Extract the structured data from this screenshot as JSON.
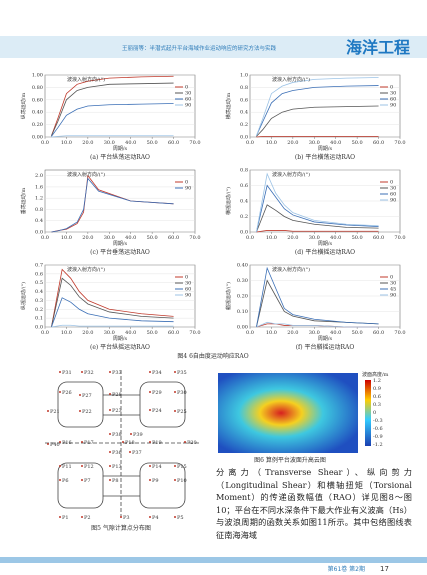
{
  "header": {
    "running_title": "王丽丽等：半潜式起升平台海域作业运动响应的研究方法与实践",
    "journal": "海洋工程"
  },
  "figure4": {
    "caption": "图4 6自由度运动响应RAO",
    "panels": [
      {
        "type": "line",
        "caption": "(a) 平台纵荡运动RAO",
        "xlabel": "周期/s",
        "ylabel": "纵荡运动/m",
        "legend_title": "波浪入射方向/(°)",
        "x": [
          3,
          6,
          10,
          15,
          20,
          30,
          45,
          60
        ],
        "xlim": [
          0,
          70
        ],
        "ylim": [
          0,
          1
        ],
        "xticks": [
          {
            "value": 0,
            "label": "0.0"
          },
          {
            "value": 10,
            "label": "10.0"
          },
          {
            "value": 20,
            "label": "20.0"
          },
          {
            "value": 30,
            "label": "30.0"
          },
          {
            "value": 40,
            "label": "40.0"
          },
          {
            "value": 50,
            "label": "50.0"
          },
          {
            "value": 60,
            "label": "60.0"
          },
          {
            "value": 70,
            "label": "70.0"
          }
        ],
        "yticks": [
          {
            "value": 0,
            "label": "0.00"
          },
          {
            "value": 0.2,
            "label": "0.20"
          },
          {
            "value": 0.4,
            "label": "0.40"
          },
          {
            "value": 0.6,
            "label": "0.60"
          },
          {
            "value": 0.8,
            "label": "0.80"
          },
          {
            "value": 1,
            "label": "1.00"
          }
        ],
        "series": [
          {
            "name": "0",
            "color": "#c0392b",
            "values": [
              0.02,
              0.3,
              0.7,
              0.85,
              0.9,
              0.95,
              0.97,
              0.98
            ]
          },
          {
            "name": "30",
            "color": "#555",
            "values": [
              0.02,
              0.25,
              0.6,
              0.75,
              0.8,
              0.85,
              0.86,
              0.87
            ]
          },
          {
            "name": "60",
            "color": "#3b6fb6",
            "values": [
              0.01,
              0.15,
              0.35,
              0.45,
              0.5,
              0.52,
              0.53,
              0.54
            ]
          },
          {
            "name": "90",
            "color": "#9cc3e6",
            "values": [
              0,
              0.01,
              0.02,
              0.02,
              0.02,
              0.02,
              0.02,
              0.02
            ]
          }
        ]
      },
      {
        "type": "line",
        "caption": "(b) 平台横荡运动RAO",
        "xlabel": "周期/s",
        "ylabel": "横荡运动/m",
        "legend_title": "波浪入射方向/(°)",
        "x": [
          3,
          6,
          10,
          15,
          20,
          30,
          45,
          60
        ],
        "xlim": [
          0,
          70
        ],
        "ylim": [
          0,
          1
        ],
        "xticks": [
          {
            "value": 0,
            "label": "0.0"
          },
          {
            "value": 10,
            "label": "10.0"
          },
          {
            "value": 20,
            "label": "20.0"
          },
          {
            "value": 30,
            "label": "30.0"
          },
          {
            "value": 40,
            "label": "40.0"
          },
          {
            "value": 50,
            "label": "50.0"
          },
          {
            "value": 60,
            "label": "60.0"
          },
          {
            "value": 70,
            "label": "70.0"
          }
        ],
        "yticks": [
          {
            "value": 0,
            "label": "0.0"
          },
          {
            "value": 0.2,
            "label": "0.2"
          },
          {
            "value": 0.4,
            "label": "0.4"
          },
          {
            "value": 0.6,
            "label": "0.6"
          },
          {
            "value": 0.8,
            "label": "0.8"
          },
          {
            "value": 1,
            "label": "1.0"
          }
        ],
        "series": [
          {
            "name": "0",
            "color": "#c0392b",
            "values": [
              0,
              0.01,
              0.01,
              0.01,
              0.01,
              0.01,
              0.01,
              0.01
            ]
          },
          {
            "name": "30",
            "color": "#555",
            "values": [
              0.01,
              0.12,
              0.3,
              0.4,
              0.45,
              0.48,
              0.49,
              0.5
            ]
          },
          {
            "name": "60",
            "color": "#3b6fb6",
            "values": [
              0.02,
              0.25,
              0.55,
              0.7,
              0.75,
              0.8,
              0.82,
              0.83
            ]
          },
          {
            "name": "90",
            "color": "#9cc3e6",
            "values": [
              0.02,
              0.3,
              0.7,
              0.82,
              0.88,
              0.93,
              0.95,
              0.96
            ]
          }
        ]
      },
      {
        "type": "line",
        "caption": "(c) 平台垂荡运动RAO",
        "xlabel": "周期/s",
        "ylabel": "垂荡运动/m",
        "legend_title": "波浪入射方向/(°)",
        "x": [
          3,
          6,
          10,
          15,
          18,
          20,
          25,
          40,
          60
        ],
        "xlim": [
          0,
          70
        ],
        "ylim": [
          0,
          2.2
        ],
        "xticks": [
          {
            "value": 0,
            "label": "0.0"
          },
          {
            "value": 10,
            "label": "10.0"
          },
          {
            "value": 20,
            "label": "20.0"
          },
          {
            "value": 30,
            "label": "30.0"
          },
          {
            "value": 40,
            "label": "40.0"
          },
          {
            "value": 50,
            "label": "50.0"
          },
          {
            "value": 60,
            "label": "60.0"
          },
          {
            "value": 70,
            "label": "70.0"
          }
        ],
        "yticks": [
          {
            "value": 0,
            "label": "0.0"
          },
          {
            "value": 0.4,
            "label": "0.4"
          },
          {
            "value": 0.8,
            "label": "0.8"
          },
          {
            "value": 1.2,
            "label": "1.2"
          },
          {
            "value": 1.6,
            "label": "1.6"
          },
          {
            "value": 2,
            "label": "2.0"
          }
        ],
        "series": [
          {
            "name": "0",
            "color": "#c0392b",
            "values": [
              0,
              0.05,
              0.1,
              0.3,
              0.7,
              2,
              1.5,
              1.1,
              1
            ]
          },
          {
            "name": "90",
            "color": "#3b6fb6",
            "values": [
              0,
              0.04,
              0.12,
              0.35,
              0.8,
              1.9,
              1.45,
              1.1,
              1
            ]
          }
        ]
      },
      {
        "type": "line",
        "caption": "(d) 平台横摇运动RAO",
        "xlabel": "周期/s",
        "ylabel": "横摇运动/(°)",
        "legend_title": "波浪入射方向/(°)",
        "x": [
          3,
          8,
          12,
          16,
          20,
          30,
          45,
          60
        ],
        "xlim": [
          0,
          70
        ],
        "ylim": [
          0,
          0.8
        ],
        "xticks": [
          {
            "value": 0,
            "label": "0.0"
          },
          {
            "value": 10,
            "label": "10.0"
          },
          {
            "value": 20,
            "label": "20.0"
          },
          {
            "value": 30,
            "label": "30.0"
          },
          {
            "value": 40,
            "label": "40.0"
          },
          {
            "value": 50,
            "label": "50.0"
          },
          {
            "value": 60,
            "label": "60.0"
          },
          {
            "value": 70,
            "label": "70.0"
          }
        ],
        "yticks": [
          {
            "value": 0,
            "label": "0.0"
          },
          {
            "value": 0.2,
            "label": "0.2"
          },
          {
            "value": 0.4,
            "label": "0.4"
          },
          {
            "value": 0.6,
            "label": "0.6"
          },
          {
            "value": 0.8,
            "label": "0.8"
          }
        ],
        "series": [
          {
            "name": "0",
            "color": "#c0392b",
            "values": [
              0,
              0.02,
              0.02,
              0.02,
              0.01,
              0.01,
              0.01,
              0.01
            ]
          },
          {
            "name": "30",
            "color": "#555",
            "values": [
              0,
              0.35,
              0.28,
              0.2,
              0.15,
              0.1,
              0.06,
              0.05
            ]
          },
          {
            "name": "60",
            "color": "#3b6fb6",
            "values": [
              0,
              0.6,
              0.45,
              0.3,
              0.22,
              0.13,
              0.09,
              0.07
            ]
          },
          {
            "name": "90",
            "color": "#9cc3e6",
            "values": [
              0,
              0.75,
              0.5,
              0.35,
              0.25,
              0.15,
              0.1,
              0.08
            ]
          }
        ]
      },
      {
        "type": "line",
        "caption": "(e) 平台纵摇运动RAO",
        "xlabel": "周期/s",
        "ylabel": "纵摇运动/(°)",
        "legend_title": "波浪入射方向/(°)",
        "x": [
          3,
          8,
          12,
          16,
          20,
          30,
          45,
          60
        ],
        "xlim": [
          0,
          70
        ],
        "ylim": [
          0,
          0.7
        ],
        "xticks": [
          {
            "value": 0,
            "label": "0.0"
          },
          {
            "value": 10,
            "label": "10.0"
          },
          {
            "value": 20,
            "label": "20.0"
          },
          {
            "value": 30,
            "label": "30.0"
          },
          {
            "value": 40,
            "label": "40.0"
          },
          {
            "value": 50,
            "label": "50.0"
          },
          {
            "value": 60,
            "label": "60.0"
          },
          {
            "value": 70,
            "label": "70.0"
          }
        ],
        "yticks": [
          {
            "value": 0,
            "label": "0.0"
          },
          {
            "value": 0.1,
            "label": "0.1"
          },
          {
            "value": 0.2,
            "label": "0.2"
          },
          {
            "value": 0.3,
            "label": "0.3"
          },
          {
            "value": 0.4,
            "label": "0.4"
          },
          {
            "value": 0.5,
            "label": "0.5"
          },
          {
            "value": 0.6,
            "label": "0.6"
          },
          {
            "value": 0.7,
            "label": "0.7"
          }
        ],
        "series": [
          {
            "name": "0",
            "color": "#c0392b",
            "values": [
              0,
              0.65,
              0.55,
              0.4,
              0.3,
              0.2,
              0.15,
              0.12
            ]
          },
          {
            "name": "30",
            "color": "#555",
            "values": [
              0,
              0.55,
              0.47,
              0.34,
              0.26,
              0.17,
              0.12,
              0.1
            ]
          },
          {
            "name": "60",
            "color": "#3b6fb6",
            "values": [
              0,
              0.33,
              0.28,
              0.2,
              0.15,
              0.1,
              0.07,
              0.06
            ]
          },
          {
            "name": "90",
            "color": "#9cc3e6",
            "values": [
              0,
              0.02,
              0.02,
              0.01,
              0.01,
              0.01,
              0.01,
              0.01
            ]
          }
        ]
      },
      {
        "type": "line",
        "caption": "(f) 平台艏摇运动RAO",
        "xlabel": "周期/s",
        "ylabel": "艏摇运动/(°)",
        "legend_title": "波浪入射方向/(°)",
        "x": [
          3,
          8,
          12,
          16,
          20,
          30,
          45,
          60
        ],
        "xlim": [
          0,
          70
        ],
        "ylim": [
          0,
          0.4
        ],
        "xticks": [
          {
            "value": 0,
            "label": "0.0"
          },
          {
            "value": 10,
            "label": "10.0"
          },
          {
            "value": 20,
            "label": "20.0"
          },
          {
            "value": 30,
            "label": "30.0"
          },
          {
            "value": 40,
            "label": "40.0"
          },
          {
            "value": 50,
            "label": "50.0"
          },
          {
            "value": 60,
            "label": "60.0"
          },
          {
            "value": 70,
            "label": "70.0"
          }
        ],
        "yticks": [
          {
            "value": 0,
            "label": "0.00"
          },
          {
            "value": 0.1,
            "label": "0.10"
          },
          {
            "value": 0.2,
            "label": "0.20"
          },
          {
            "value": 0.3,
            "label": "0.30"
          },
          {
            "value": 0.4,
            "label": "0.40"
          }
        ],
        "series": [
          {
            "name": "0",
            "color": "#c0392b",
            "values": [
              0,
              0.02,
              0.02,
              0.01,
              0.01,
              0.01,
              0,
              0
            ]
          },
          {
            "name": "30",
            "color": "#555",
            "values": [
              0,
              0.3,
              0.2,
              0.1,
              0.07,
              0.04,
              0.03,
              0.02
            ]
          },
          {
            "name": "45",
            "color": "#3b6fb6",
            "values": [
              0,
              0.38,
              0.25,
              0.12,
              0.08,
              0.05,
              0.03,
              0.02
            ]
          },
          {
            "name": "90",
            "color": "#9cc3e6",
            "values": [
              0,
              0.03,
              0.02,
              0.02,
              0.01,
              0.01,
              0,
              0
            ]
          }
        ]
      }
    ]
  },
  "figure5": {
    "caption": "图5 气隙计算点分布图",
    "points": [
      "P31",
      "P32",
      "P33",
      "P34",
      "P35",
      "P26",
      "P27",
      "P28",
      "P29",
      "P30",
      "P21",
      "P22",
      "P23",
      "P24",
      "P25",
      "P38",
      "P39",
      "P40",
      "P36",
      "P37",
      "P16",
      "P17",
      "P18",
      "P19",
      "P20",
      "P11",
      "P12",
      "P13",
      "P14",
      "P15",
      "P6",
      "P7",
      "P8",
      "P9",
      "P10",
      "P1",
      "P2",
      "P3",
      "P4",
      "P5"
    ]
  },
  "figure6": {
    "caption": "图6 算例平台波面升高云图",
    "colorbar_title": "波面高度/m",
    "colorbar_ticks": [
      "1.2",
      "0.9",
      "0.6",
      "0.3",
      "0",
      "-0.3",
      "-0.6",
      "-0.9",
      "-1.2"
    ]
  },
  "body": {
    "text": "分离力（Transverse Shear）、纵向剪力（Longitudinal Shear）和横轴扭矩（Torsional Moment）的传递函数幅值（RAO）详见图8～图10；平台在不同水深条件下最大作业有义波高（Hs）与波浪周期的函数关系如图11所示。其中包络图线表征南海海域"
  },
  "footer": {
    "issue": "第61卷 第2期",
    "page": "17"
  }
}
